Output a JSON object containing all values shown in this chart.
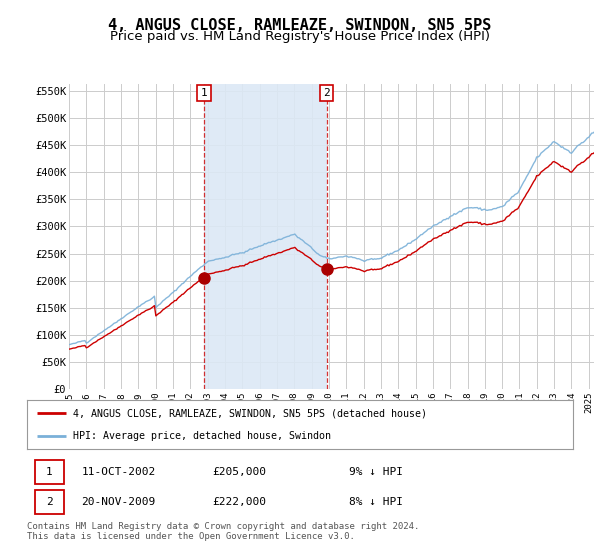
{
  "title": "4, ANGUS CLOSE, RAMLEAZE, SWINDON, SN5 5PS",
  "subtitle": "Price paid vs. HM Land Registry's House Price Index (HPI)",
  "ylim": [
    0,
    562500
  ],
  "yticks": [
    0,
    50000,
    100000,
    150000,
    200000,
    250000,
    300000,
    350000,
    400000,
    450000,
    500000,
    550000
  ],
  "bg_color": "#dce8f5",
  "grid_color": "#c8c8c8",
  "shade_color": "#dce8f5",
  "line1_color": "#cc0000",
  "line2_color": "#7ab0d8",
  "marker_color": "#aa0000",
  "sale1_year": 2002.79,
  "sale1_price": 205000,
  "sale2_year": 2009.87,
  "sale2_price": 222000,
  "legend_line1": "4, ANGUS CLOSE, RAMLEAZE, SWINDON, SN5 5PS (detached house)",
  "legend_line2": "HPI: Average price, detached house, Swindon",
  "table_row1": [
    "1",
    "11-OCT-2002",
    "£205,000",
    "9% ↓ HPI"
  ],
  "table_row2": [
    "2",
    "20-NOV-2009",
    "£222,000",
    "8% ↓ HPI"
  ],
  "footer": "Contains HM Land Registry data © Crown copyright and database right 2024.\nThis data is licensed under the Open Government Licence v3.0.",
  "title_fontsize": 11,
  "subtitle_fontsize": 9.5
}
